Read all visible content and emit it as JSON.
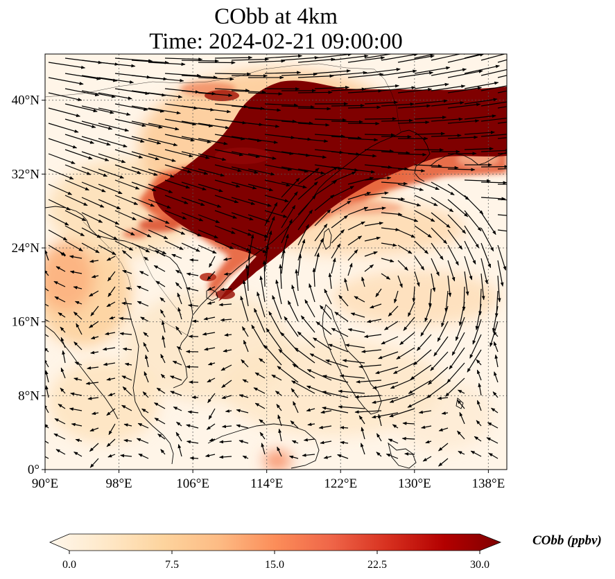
{
  "title": {
    "line1": "CObb at 4km",
    "line2": "Time: 2024-02-21 09:00:00"
  },
  "map": {
    "lon_range": [
      90,
      140
    ],
    "lat_range": [
      0,
      45
    ],
    "lon_ticks": [
      {
        "value": 90,
        "label": "90°E"
      },
      {
        "value": 98,
        "label": "98°E"
      },
      {
        "value": 106,
        "label": "106°E"
      },
      {
        "value": 114,
        "label": "114°E"
      },
      {
        "value": 122,
        "label": "122°E"
      },
      {
        "value": 130,
        "label": "130°E"
      },
      {
        "value": 138,
        "label": "138°E"
      }
    ],
    "lat_ticks": [
      {
        "value": 0,
        "label": "0°"
      },
      {
        "value": 8,
        "label": "8°N"
      },
      {
        "value": 16,
        "label": "16°N"
      },
      {
        "value": 24,
        "label": "24°N"
      },
      {
        "value": 32,
        "label": "32°N"
      },
      {
        "value": 40,
        "label": "40°N"
      }
    ],
    "gridlines": true,
    "field_variable": "CObb",
    "field_units": "ppbv",
    "vectors": "wind"
  },
  "colorbar": {
    "label": "CObb (ppbv)",
    "range": [
      0.0,
      30.0
    ],
    "extend": "both",
    "colormap": "OrRd",
    "colors": [
      "#fff7ec",
      "#fee8c8",
      "#fdd49e",
      "#fdbb84",
      "#fc8d59",
      "#ef6548",
      "#d7301f",
      "#b30000",
      "#7f0000"
    ],
    "ticks": [
      {
        "value": 0.0,
        "label": "0.0"
      },
      {
        "value": 7.5,
        "label": "7.5"
      },
      {
        "value": 15.0,
        "label": "15.0"
      },
      {
        "value": 22.5,
        "label": "22.5"
      },
      {
        "value": 30.0,
        "label": "30.0"
      }
    ]
  }
}
